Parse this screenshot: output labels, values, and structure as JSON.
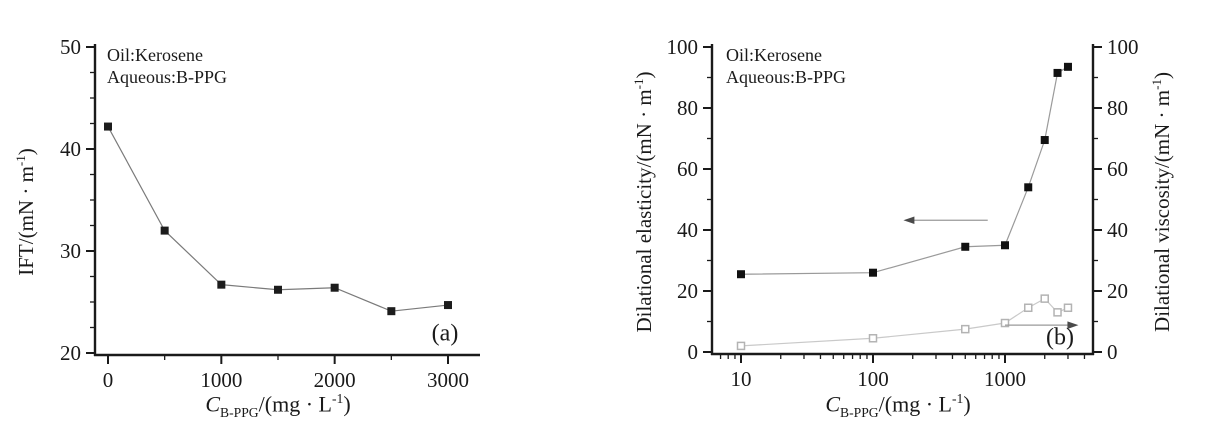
{
  "chart_data": [
    {
      "type": "line",
      "panel_tag": "(a)",
      "annotation": [
        "Oil:Kerosene",
        "Aqueous:B-PPG"
      ],
      "xscale": "linear",
      "x": [
        0,
        500,
        1000,
        1500,
        2000,
        2500,
        3000
      ],
      "series": [
        {
          "name": "IFT",
          "marker": "filled-square",
          "marker_color": "#1c1c1c",
          "line_color": "#7a7a7a",
          "values": [
            42.2,
            32.0,
            26.7,
            26.2,
            26.4,
            24.1,
            24.7
          ]
        }
      ],
      "xlabel": {
        "symbol": "C",
        "sub": "B-PPG",
        "rest": "/(mg · L",
        "sup": "-1",
        "close": ")"
      },
      "ylabel": {
        "text": "IFT/(mN · m",
        "sup": "-1",
        "close": ")"
      },
      "xlim": [
        -115,
        3280
      ],
      "ylim": [
        20,
        50
      ],
      "x_major_ticks": [
        0,
        1000,
        2000,
        3000
      ],
      "x_minor_ticks": [
        500,
        1500,
        2500
      ],
      "y_major_ticks": [
        20,
        30,
        40,
        50
      ],
      "y_minor_step": 2.5,
      "axis_color": "#1a1a1a"
    },
    {
      "type": "line",
      "panel_tag": "(b)",
      "annotation": [
        "Oil:Kerosene",
        "Aqueous:B-PPG"
      ],
      "xscale": "log",
      "x": [
        10,
        100,
        500,
        1000,
        1500,
        2000,
        2500,
        3000
      ],
      "series": [
        {
          "name": "Dilational elasticity",
          "axis": "left",
          "marker": "filled-square",
          "marker_color": "#111111",
          "line_color": "#9a9a9a",
          "values": [
            25.5,
            26.0,
            34.5,
            35.0,
            54.0,
            69.5,
            91.5,
            93.5
          ]
        },
        {
          "name": "Dilational viscosity",
          "axis": "right",
          "marker": "open-square",
          "marker_color": "#b3b3b3",
          "line_color": "#c9c9c9",
          "values": [
            2.0,
            4.5,
            7.5,
            9.5,
            14.5,
            17.5,
            13.0,
            14.5
          ]
        }
      ],
      "xlabel": {
        "symbol": "C",
        "sub": "B-PPG",
        "rest": "/(mg · L",
        "sup": "-1",
        "close": ")"
      },
      "ylabel_left": {
        "text": "Dilational elasticity/(mN · m",
        "sup": "-1",
        "close": ")"
      },
      "ylabel_right": {
        "text": "Dilational viscosity/(mN · m",
        "sup": "-1",
        "close": ")"
      },
      "xlim": [
        6.3,
        4640
      ],
      "ylim": [
        0,
        100
      ],
      "x_major_ticks": [
        10,
        100,
        1000
      ],
      "y_major_ticks": [
        0,
        20,
        40,
        60,
        80,
        100
      ],
      "y_minor_step": 10,
      "arrows": [
        {
          "dir": "left",
          "points_to": "left-axis",
          "y": 43.2,
          "x_tail": 740,
          "x_head": 170
        },
        {
          "dir": "right",
          "points_to": "right-axis",
          "y": 8.8,
          "x_tail": 1000,
          "x_head": 3600
        }
      ],
      "axis_color": "#1a1a1a"
    }
  ]
}
